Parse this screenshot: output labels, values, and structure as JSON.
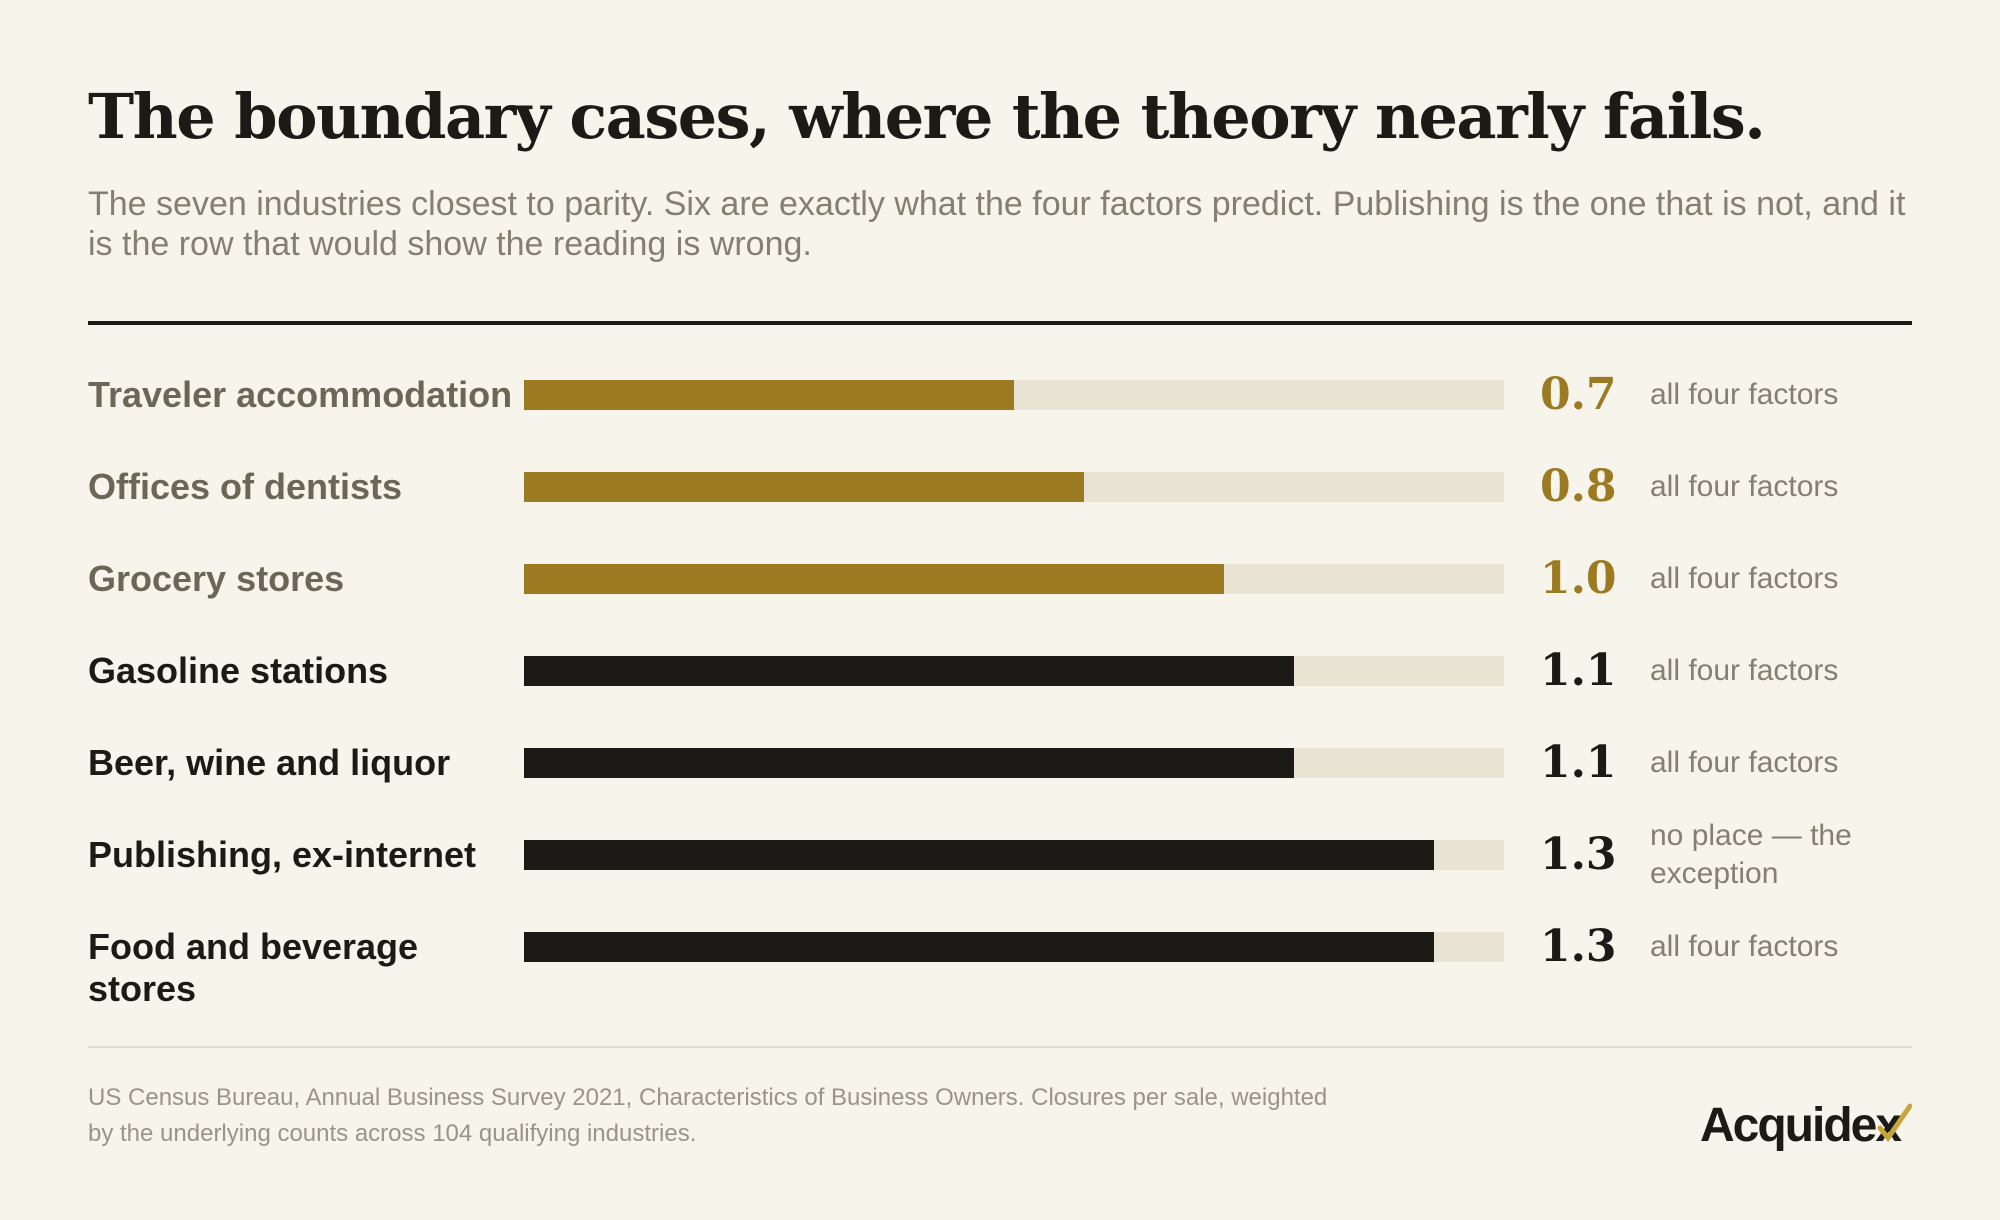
{
  "header": {
    "title": "The boundary cases, where the theory nearly fails.",
    "subtitle": "The seven industries closest to parity. Six are exactly what the four factors predict. Publishing is the one that is not, and it is the row that would show the reading is wrong."
  },
  "chart_data": {
    "type": "bar",
    "orientation": "horizontal",
    "categories": [
      "Traveler accommodation",
      "Offices of dentists",
      "Grocery stores",
      "Gasoline stations",
      "Beer, wine and liquor",
      "Publishing, ex-internet",
      "Food and beverage stores"
    ],
    "values": [
      0.7,
      0.8,
      1.0,
      1.1,
      1.1,
      1.3,
      1.3
    ],
    "value_labels": [
      "0.7",
      "0.8",
      "1.0",
      "1.1",
      "1.1",
      "1.3",
      "1.3"
    ],
    "notes": [
      "all four factors",
      "all four factors",
      "all four factors",
      "all four factors",
      "all four factors",
      "no place — the exception",
      "all four factors"
    ],
    "xlim": [
      0,
      1.4
    ],
    "highlight_below": 1.0,
    "colors": {
      "below_parity": "#9b7a22",
      "above_parity": "#1c1a16",
      "track": "#e9e3d4",
      "label_below": "#6b6656",
      "note": "#857f72"
    }
  },
  "footer": {
    "source": "US Census Bureau, Annual Business Survey 2021, Characteristics of Business Owners. Closures per sale, weighted by the underlying counts across 104 qualifying industries.",
    "logo_text": "Acquidex",
    "logo_accent_color": "#c9a43a"
  }
}
